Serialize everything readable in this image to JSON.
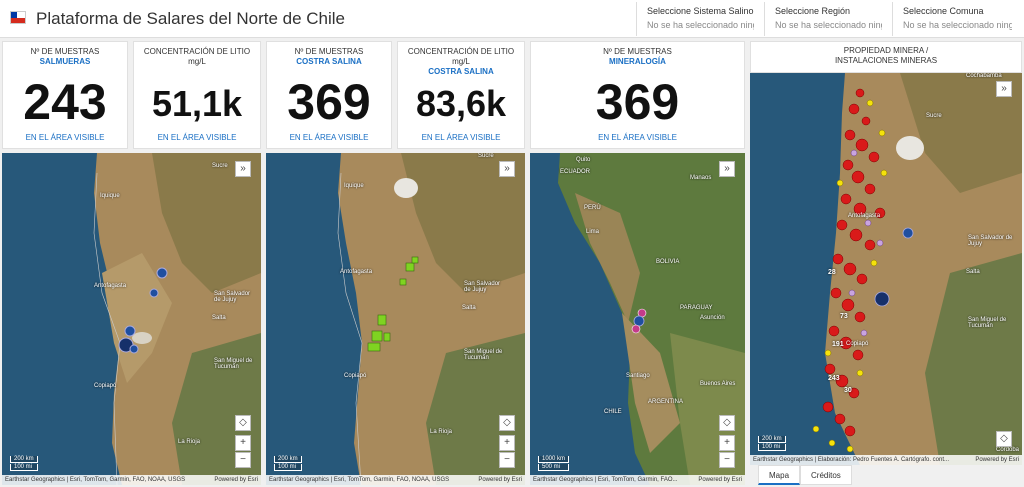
{
  "header": {
    "title": "Plataforma de Salares del Norte de Chile",
    "selectors": [
      {
        "label": "Seleccione Sistema Salino",
        "placeholder": "No se ha seleccionado ningun..."
      },
      {
        "label": "Seleccione Región",
        "placeholder": "No se ha seleccionado ningun..."
      },
      {
        "label": "Seleccione Comuna",
        "placeholder": "No se ha seleccionado ningun..."
      }
    ]
  },
  "kpis": [
    {
      "title": "Nº DE MUESTRAS",
      "subtitle": "SALMUERAS",
      "value": "243",
      "footer": "EN EL ÁREA VISIBLE"
    },
    {
      "title": "CONCENTRACIÓN DE LITIO mg/L",
      "subtitle": "",
      "value": "51,1k",
      "footer": "EN EL ÁREA VISIBLE"
    },
    {
      "title": "Nº DE MUESTRAS",
      "subtitle": "COSTRA SALINA",
      "value": "369",
      "footer": "EN EL ÁREA VISIBLE"
    },
    {
      "title": "CONCENTRACIÓN DE LITIO mg/L",
      "subtitle": "COSTRA SALINA",
      "value": "83,6k",
      "footer": "EN EL ÁREA VISIBLE"
    },
    {
      "title": "Nº DE MUESTRAS",
      "subtitle": "MINERALOGÍA",
      "value": "369",
      "footer": "EN EL ÁREA VISIBLE"
    }
  ],
  "maps": {
    "map1": {
      "labels": [
        "Sucre",
        "Iquique",
        "Antofagasta",
        "San Salvador de Jujuy",
        "Salta",
        "San Miguel de Tucumán",
        "Copiapó",
        "La Rioja"
      ],
      "scale_km": "200 km",
      "scale_mi": "100 mi",
      "attribution": "Earthstar Geographics | Esri, TomTom, Garmin, FAO, NOAA, USGS",
      "powered": "Powered by Esri"
    },
    "map2": {
      "labels": [
        "Sucre",
        "Iquique",
        "Antofagasta",
        "San Salvador de Jujuy",
        "Salta",
        "San Miguel de Tucumán",
        "Copiapó",
        "La Rioja"
      ],
      "scale_km": "200 km",
      "scale_mi": "100 mi",
      "attribution": "Earthstar Geographics | Esri, TomTom, Garmin, FAO, NOAA, USGS",
      "powered": "Powered by Esri"
    },
    "map3": {
      "labels": [
        "Quito",
        "ECUADOR",
        "Manaos",
        "PERÚ",
        "Lima",
        "BOLIVIA",
        "PARAGUAY",
        "Asunción",
        "CHILE",
        "Santiago",
        "ARGENTINA",
        "Buenos Aires"
      ],
      "scale_km": "1000 km",
      "scale_mi": "500 mi",
      "attribution": "Earthstar Geographics | Esri, TomTom, Garmin, FAO...",
      "powered": "Powered by Esri"
    },
    "map4": {
      "title_line1": "PROPIEDAD MINERA /",
      "title_line2": "INSTALACIONES MINERAS",
      "labels": [
        "Cochabamba",
        "Sucre",
        "Antofagasta",
        "San Salvador de Jujuy",
        "Salta",
        "San Miguel de Tucumán",
        "Copiapó",
        "Córdoba"
      ],
      "cluster_labels": [
        "28",
        "73",
        "191",
        "243",
        "30"
      ],
      "scale_km": "200 km",
      "scale_mi": "100 mi",
      "attribution": "Earthstar Geographics | Elaboración: Pedro Fuentes A. Cartógrafo. cont...",
      "powered": "Powered by Esri"
    }
  },
  "tabs": [
    "Mapa",
    "Créditos"
  ]
}
